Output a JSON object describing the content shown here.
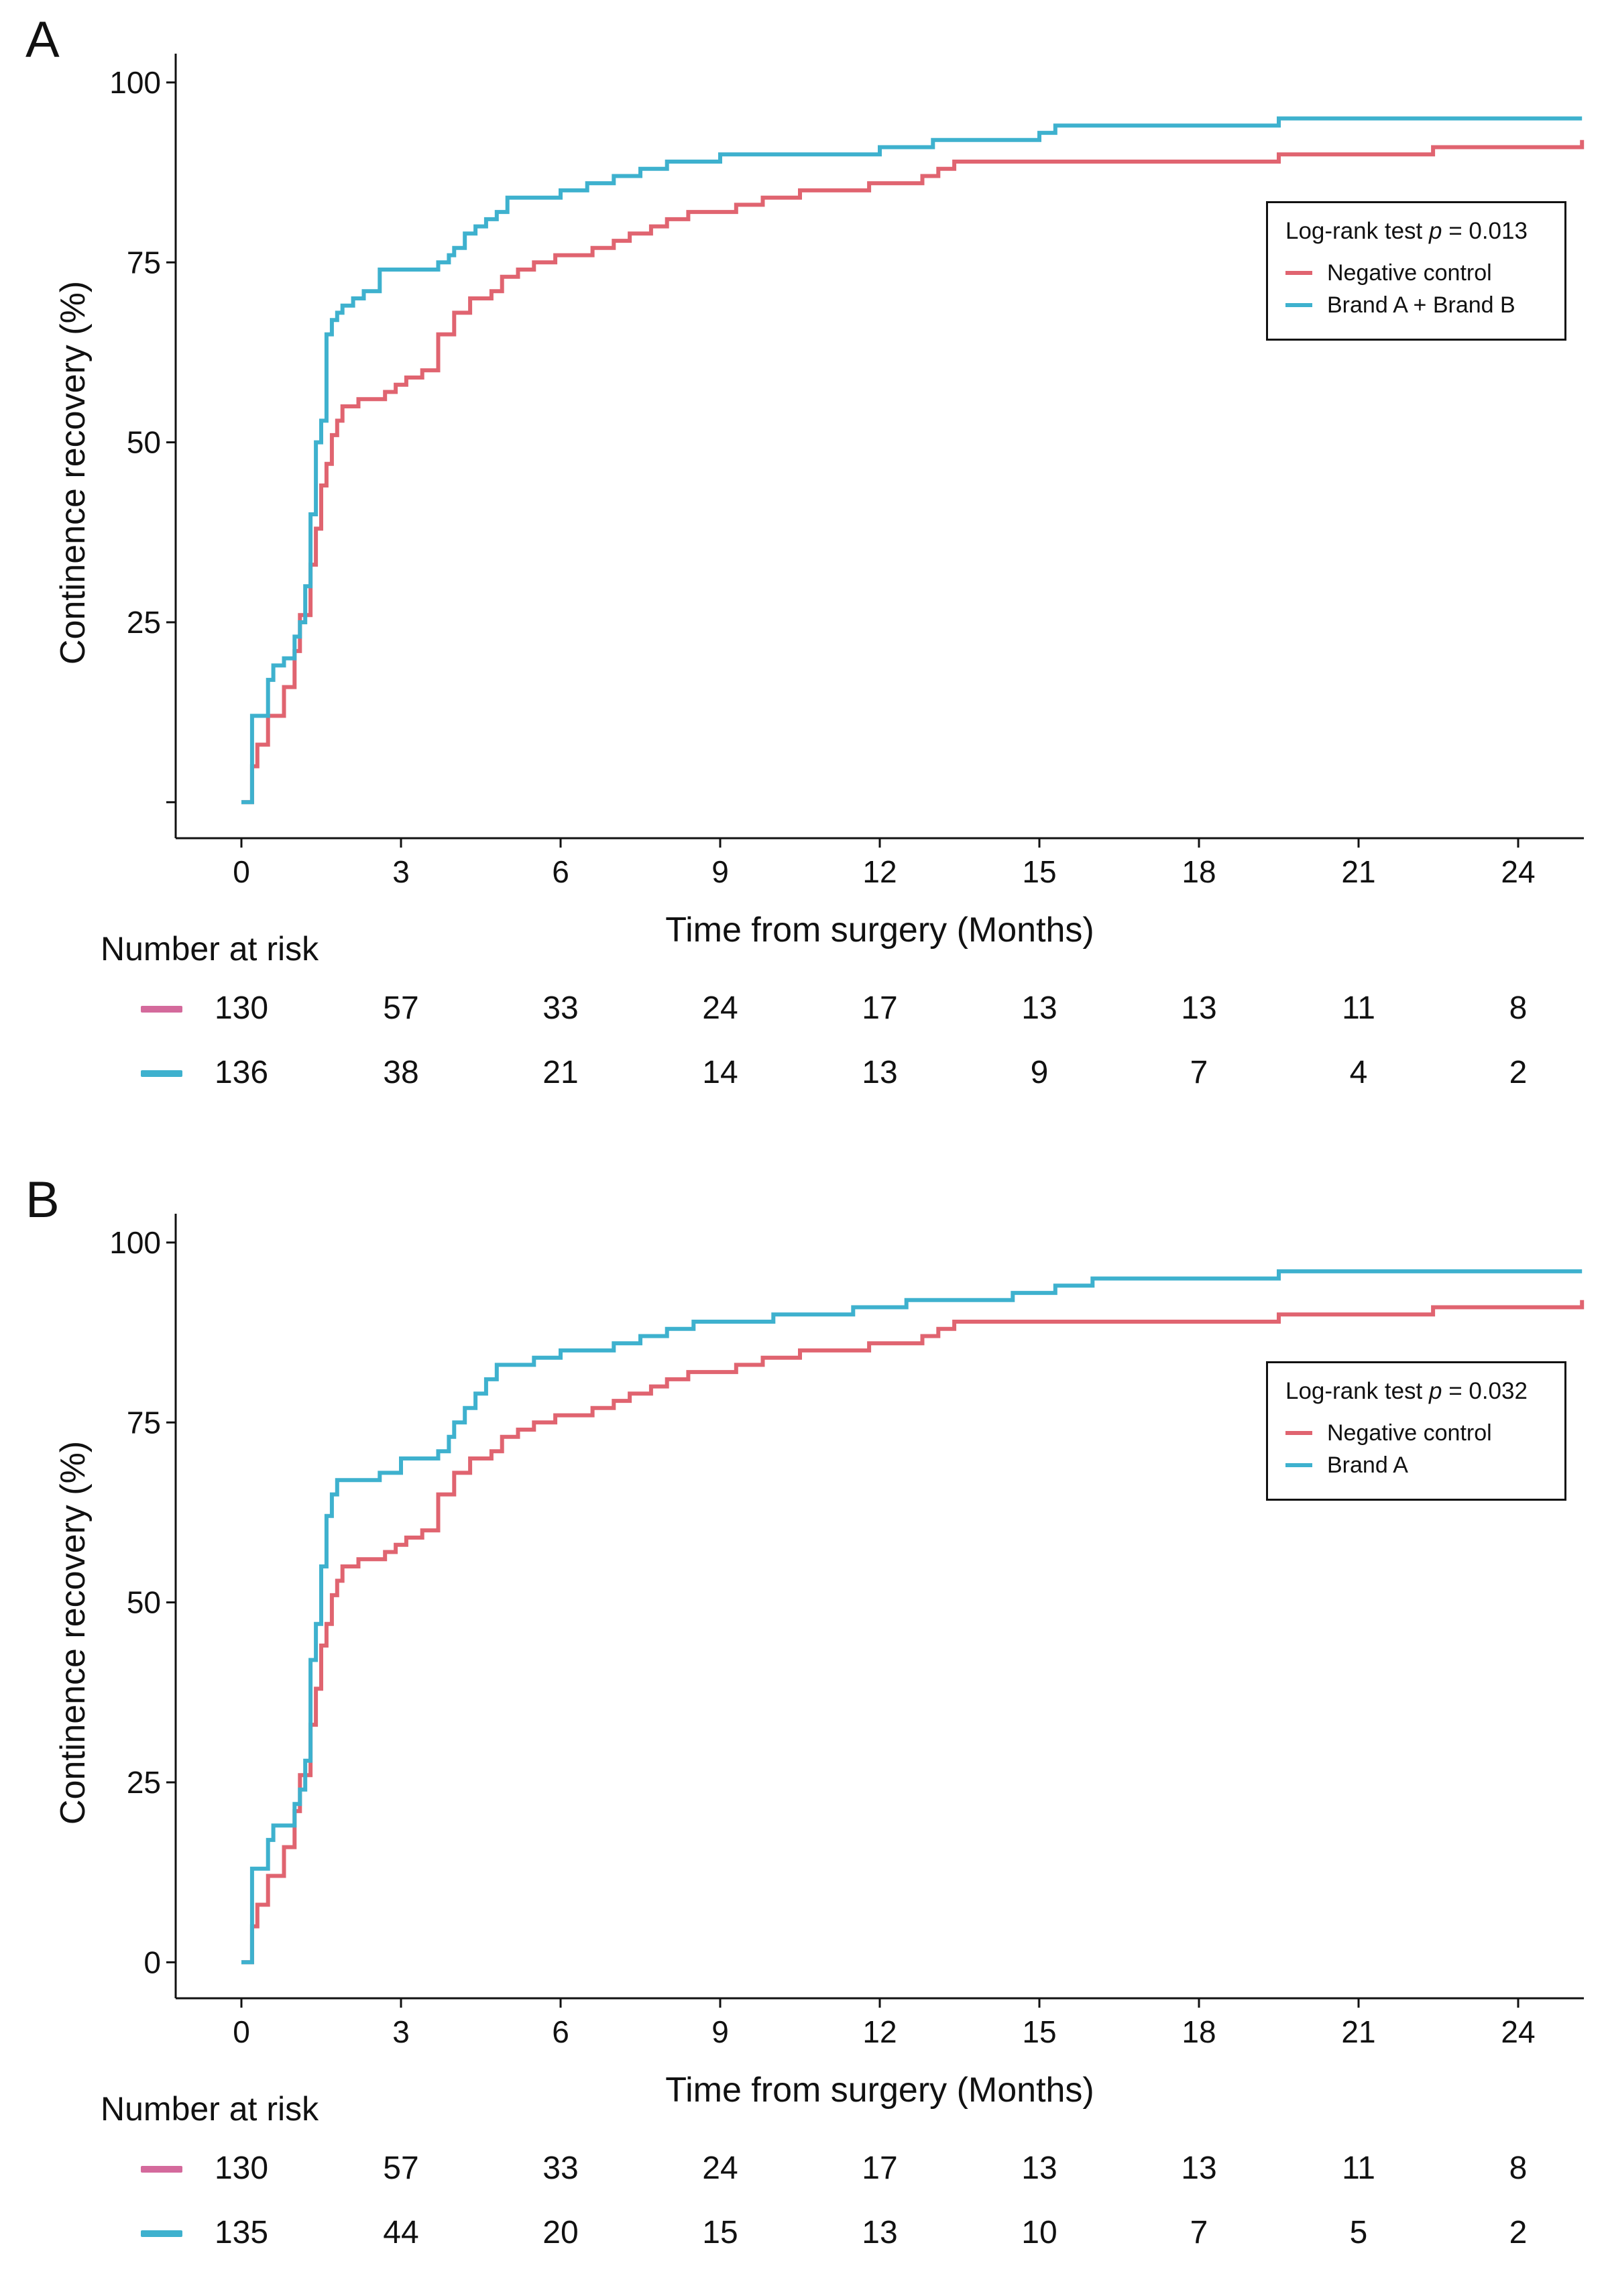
{
  "chart_data": [
    {
      "type": "line",
      "panel_label": "A",
      "title": "",
      "xlabel": "Time from surgery (Months)",
      "ylabel": "Continence recovery (%)",
      "xlim": [
        -1.2,
        25.2
      ],
      "ylim": [
        -5,
        104
      ],
      "x_ticks": [
        0,
        3,
        6,
        9,
        12,
        15,
        18,
        21,
        24
      ],
      "y_ticks": [
        0,
        25,
        50,
        75,
        100
      ],
      "y_tick_labels": [
        "",
        "25",
        "50",
        "75",
        "100"
      ],
      "legend": {
        "title_prefix": "Log-rank test ",
        "title_p": "p",
        "title_suffix": " = 0.013",
        "placement": "top-right",
        "entries": [
          "Negative control",
          "Brand A + Brand B"
        ]
      },
      "series": [
        {
          "name": "Negative control",
          "color": "#E06470",
          "x": [
            0,
            0.2,
            0.3,
            0.5,
            0.7,
            0.8,
            1.0,
            1.1,
            1.3,
            1.4,
            1.5,
            1.6,
            1.7,
            1.8,
            1.9,
            2.0,
            2.2,
            2.4,
            2.7,
            2.9,
            3.1,
            3.4,
            3.7,
            4.0,
            4.3,
            4.5,
            4.7,
            4.9,
            5.2,
            5.5,
            5.9,
            6.1,
            6.6,
            7.0,
            7.3,
            7.7,
            8.0,
            8.4,
            8.7,
            9.3,
            9.8,
            10.5,
            11.2,
            11.8,
            12.2,
            12.8,
            13.1,
            13.4,
            14.5,
            16.2,
            17.8,
            19.5,
            20.8,
            21.9,
            22.4,
            23.3,
            25.2
          ],
          "y": [
            0,
            5,
            8,
            12,
            12,
            16,
            21,
            26,
            33,
            38,
            44,
            47,
            51,
            53,
            55,
            55,
            56,
            56,
            57,
            58,
            59,
            60,
            65,
            68,
            70,
            70,
            71,
            73,
            74,
            75,
            76,
            76,
            77,
            78,
            79,
            80,
            81,
            82,
            82,
            83,
            84,
            85,
            85,
            86,
            86,
            87,
            88,
            89,
            89,
            89,
            89,
            90,
            90,
            90,
            91,
            91,
            92
          ]
        },
        {
          "name": "Brand A + Brand B",
          "color": "#3EB1CE",
          "x": [
            0,
            0.2,
            0.4,
            0.5,
            0.6,
            0.8,
            1.0,
            1.1,
            1.2,
            1.3,
            1.4,
            1.5,
            1.6,
            1.7,
            1.8,
            1.9,
            2.1,
            2.3,
            2.6,
            3.0,
            3.2,
            3.7,
            3.9,
            4.0,
            4.2,
            4.4,
            4.6,
            4.8,
            5.0,
            5.5,
            6.0,
            6.5,
            7.0,
            7.5,
            8.0,
            8.5,
            9.0,
            10.0,
            11.0,
            11.5,
            12.0,
            12.5,
            13.0,
            14.0,
            14.5,
            15.0,
            15.3,
            16.0,
            17.0,
            18.0,
            19.0,
            19.5,
            20.0,
            21.0,
            22.0,
            23.0,
            25.2
          ],
          "y": [
            0,
            12,
            12,
            17,
            19,
            20,
            23,
            25,
            30,
            40,
            50,
            53,
            65,
            67,
            68,
            69,
            70,
            71,
            74,
            74,
            74,
            75,
            76,
            77,
            79,
            80,
            81,
            82,
            84,
            84,
            85,
            86,
            87,
            88,
            89,
            89,
            90,
            90,
            90,
            90,
            91,
            91,
            92,
            92,
            92,
            93,
            94,
            94,
            94,
            94,
            94,
            95,
            95,
            95,
            95,
            95,
            95
          ]
        }
      ],
      "risk_table": {
        "title": "Number at risk",
        "times": [
          0,
          3,
          6,
          9,
          12,
          15,
          18,
          21,
          24
        ],
        "rows": [
          {
            "name": "Negative control",
            "color": "#D46A9C",
            "values": [
              "130",
              "57",
              "33",
              "24",
              "17",
              "13",
              "13",
              "11",
              "8"
            ]
          },
          {
            "name": "Brand A + Brand B",
            "color": "#3EB1CE",
            "values": [
              "136",
              "38",
              "21",
              "14",
              "13",
              "9",
              "7",
              "4",
              "2"
            ]
          }
        ]
      }
    },
    {
      "type": "line",
      "panel_label": "B",
      "title": "",
      "xlabel": "Time from surgery (Months)",
      "ylabel": "Continence recovery (%)",
      "xlim": [
        -1.2,
        25.2
      ],
      "ylim": [
        -5,
        104
      ],
      "x_ticks": [
        0,
        3,
        6,
        9,
        12,
        15,
        18,
        21,
        24
      ],
      "y_ticks": [
        0,
        25,
        50,
        75,
        100
      ],
      "y_tick_labels": [
        "0",
        "25",
        "50",
        "75",
        "100"
      ],
      "legend": {
        "title_prefix": "Log-rank test ",
        "title_p": "p",
        "title_suffix": " = 0.032",
        "placement": "top-right",
        "entries": [
          "Negative control",
          "Brand A"
        ]
      },
      "series": [
        {
          "name": "Negative control",
          "color": "#E06470",
          "x": [
            0,
            0.2,
            0.3,
            0.5,
            0.7,
            0.8,
            1.0,
            1.1,
            1.3,
            1.4,
            1.5,
            1.6,
            1.7,
            1.8,
            1.9,
            2.0,
            2.2,
            2.4,
            2.7,
            2.9,
            3.1,
            3.4,
            3.7,
            4.0,
            4.3,
            4.5,
            4.7,
            4.9,
            5.2,
            5.5,
            5.9,
            6.1,
            6.6,
            7.0,
            7.3,
            7.7,
            8.0,
            8.4,
            8.7,
            9.3,
            9.8,
            10.5,
            11.2,
            11.8,
            12.2,
            12.8,
            13.1,
            13.4,
            14.5,
            16.2,
            17.8,
            19.5,
            20.8,
            21.9,
            22.4,
            23.3,
            25.2
          ],
          "y": [
            0,
            5,
            8,
            12,
            12,
            16,
            21,
            26,
            33,
            38,
            44,
            47,
            51,
            53,
            55,
            55,
            56,
            56,
            57,
            58,
            59,
            60,
            65,
            68,
            70,
            70,
            71,
            73,
            74,
            75,
            76,
            76,
            77,
            78,
            79,
            80,
            81,
            82,
            82,
            83,
            84,
            85,
            85,
            86,
            86,
            87,
            88,
            89,
            89,
            89,
            89,
            90,
            90,
            90,
            91,
            91,
            92
          ]
        },
        {
          "name": "Brand A",
          "color": "#3EB1CE",
          "x": [
            0,
            0.2,
            0.4,
            0.5,
            0.6,
            0.8,
            1.0,
            1.1,
            1.2,
            1.3,
            1.4,
            1.5,
            1.6,
            1.7,
            1.8,
            1.9,
            2.1,
            2.3,
            2.6,
            3.0,
            3.2,
            3.7,
            3.9,
            4.0,
            4.2,
            4.4,
            4.6,
            4.8,
            5.0,
            5.5,
            6.0,
            6.5,
            7.0,
            7.5,
            8.0,
            8.5,
            9.0,
            10.0,
            11.0,
            11.5,
            12.0,
            12.5,
            13.0,
            14.0,
            14.5,
            15.0,
            15.3,
            16.0,
            17.0,
            18.0,
            19.0,
            19.5,
            20.0,
            21.0,
            22.0,
            23.0,
            25.2
          ],
          "y": [
            0,
            13,
            13,
            17,
            19,
            19,
            22,
            24,
            28,
            42,
            47,
            55,
            62,
            65,
            67,
            67,
            67,
            67,
            68,
            70,
            70,
            71,
            73,
            75,
            77,
            79,
            81,
            83,
            83,
            84,
            85,
            85,
            86,
            87,
            88,
            89,
            89,
            90,
            90,
            91,
            91,
            92,
            92,
            92,
            93,
            93,
            94,
            95,
            95,
            95,
            95,
            96,
            96,
            96,
            96,
            96,
            96
          ]
        }
      ],
      "risk_table": {
        "title": "Number at risk",
        "times": [
          0,
          3,
          6,
          9,
          12,
          15,
          18,
          21,
          24
        ],
        "rows": [
          {
            "name": "Negative control",
            "color": "#D46A9C",
            "values": [
              "130",
              "57",
              "33",
              "24",
              "17",
              "13",
              "13",
              "11",
              "8"
            ]
          },
          {
            "name": "Brand A",
            "color": "#3EB1CE",
            "values": [
              "135",
              "44",
              "20",
              "15",
              "13",
              "10",
              "7",
              "5",
              "2"
            ]
          }
        ]
      }
    }
  ]
}
